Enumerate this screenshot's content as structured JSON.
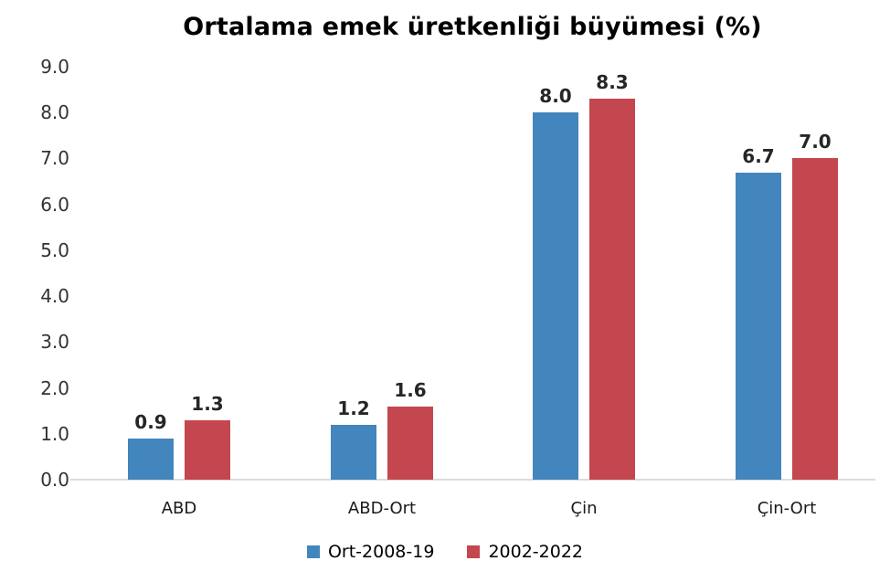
{
  "chart_data": {
    "type": "bar",
    "title": "Ortalama emek üretkenliği büyümesi (%)",
    "categories": [
      "ABD",
      "ABD-Ort",
      "Çin",
      "Çin-Ort"
    ],
    "series": [
      {
        "name": "Ort-2008-19",
        "color": "#4385BD",
        "values": [
          0.9,
          1.2,
          8.0,
          6.7
        ]
      },
      {
        "name": "2002-2022",
        "color": "#C4474F",
        "values": [
          1.3,
          1.6,
          8.3,
          7.0
        ]
      }
    ],
    "value_labels": [
      [
        "0.9",
        "1.2",
        "8.0",
        "6.7"
      ],
      [
        "1.3",
        "1.6",
        "8.3",
        "7.0"
      ]
    ],
    "ylim": [
      0,
      9
    ],
    "ytick_labels": [
      "9.0",
      "8.0",
      "7.0",
      "6.0",
      "5.0",
      "4.0",
      "3.0",
      "2.0",
      "1.0",
      "0.0"
    ],
    "grid": false,
    "legend_position": "bottom",
    "axis_line_color": "#dcdcdc",
    "text_color": "#262626"
  }
}
